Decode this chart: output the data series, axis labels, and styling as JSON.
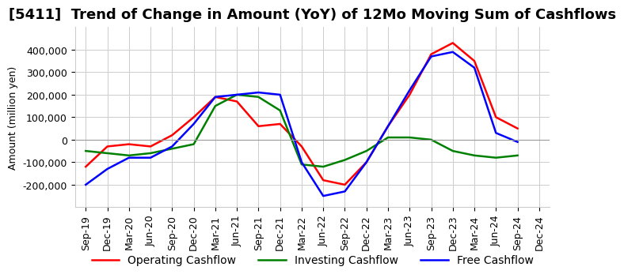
{
  "title": "[5411]  Trend of Change in Amount (YoY) of 12Mo Moving Sum of Cashflows",
  "ylabel": "Amount (million yen)",
  "xlabels": [
    "Sep-19",
    "Dec-19",
    "Mar-20",
    "Jun-20",
    "Sep-20",
    "Dec-20",
    "Mar-21",
    "Jun-21",
    "Sep-21",
    "Dec-21",
    "Mar-22",
    "Jun-22",
    "Sep-22",
    "Dec-22",
    "Mar-23",
    "Jun-23",
    "Sep-23",
    "Dec-23",
    "Mar-24",
    "Jun-24",
    "Sep-24",
    "Dec-24"
  ],
  "operating": [
    -120000,
    -30000,
    -20000,
    -30000,
    20000,
    100000,
    190000,
    170000,
    60000,
    70000,
    -30000,
    -180000,
    -200000,
    -100000,
    60000,
    200000,
    380000,
    430000,
    350000,
    100000,
    50000,
    null
  ],
  "investing": [
    -50000,
    -60000,
    -70000,
    -60000,
    -40000,
    -20000,
    150000,
    200000,
    190000,
    130000,
    -110000,
    -120000,
    -90000,
    -50000,
    10000,
    10000,
    0,
    -50000,
    -70000,
    -80000,
    -70000,
    null
  ],
  "free": [
    -200000,
    -130000,
    -80000,
    -80000,
    -30000,
    70000,
    190000,
    200000,
    210000,
    200000,
    -100000,
    -250000,
    -230000,
    -100000,
    60000,
    220000,
    370000,
    390000,
    320000,
    30000,
    -10000,
    null
  ],
  "ylim": [
    -300000,
    500000
  ],
  "yticks": [
    -200000,
    -100000,
    0,
    100000,
    200000,
    300000,
    400000
  ],
  "operating_color": "#ff0000",
  "investing_color": "#008000",
  "free_color": "#0000ff",
  "background_color": "#ffffff",
  "grid_color": "#cccccc",
  "title_fontsize": 13,
  "axis_fontsize": 9,
  "legend_fontsize": 10
}
